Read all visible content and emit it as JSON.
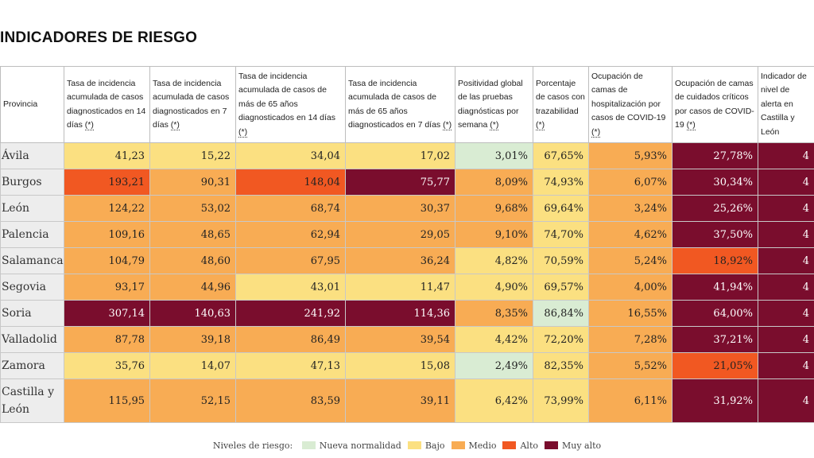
{
  "title": "INDICADORES DE RIESGO",
  "headers": [
    "Provincia",
    "Tasa de incidencia acumulada de casos diagnosticados en 14 días",
    "Tasa de incidencia acumulada de casos diagnosticados en 7 días",
    "Tasa de incidencia acumulada de casos de más de 65 años diagnosticados en 14 días",
    "Tasa de incidencia acumulada de casos de más de 65 años diagnosticados en 7 días",
    "Positividad global de las pruebas diagnósticas por semana",
    "Porcentaje de casos con trazabilidad",
    "Ocupación de camas de hospitalización por casos de COVID-19",
    "Ocupación de camas de cuidados críticos por casos de COVID-19",
    "Indicador de nivel de alerta en Castilla y León"
  ],
  "footnote_mark": "(*)",
  "rows": [
    {
      "prov": "Ávila",
      "cells": [
        {
          "v": "41,23",
          "c": "bj"
        },
        {
          "v": "15,22",
          "c": "bj"
        },
        {
          "v": "34,04",
          "c": "bj"
        },
        {
          "v": "17,02",
          "c": "bj"
        },
        {
          "v": "3,01%",
          "c": "nn"
        },
        {
          "v": "67,65%",
          "c": "bj"
        },
        {
          "v": "5,93%",
          "c": "md"
        },
        {
          "v": "27,78%",
          "c": "ma"
        },
        {
          "v": "4",
          "c": "ma"
        }
      ]
    },
    {
      "prov": "Burgos",
      "cells": [
        {
          "v": "193,21",
          "c": "al"
        },
        {
          "v": "90,31",
          "c": "md"
        },
        {
          "v": "148,04",
          "c": "al"
        },
        {
          "v": "75,77",
          "c": "ma"
        },
        {
          "v": "8,09%",
          "c": "md"
        },
        {
          "v": "74,93%",
          "c": "bj"
        },
        {
          "v": "6,07%",
          "c": "md"
        },
        {
          "v": "30,34%",
          "c": "ma"
        },
        {
          "v": "4",
          "c": "ma"
        }
      ]
    },
    {
      "prov": "León",
      "cells": [
        {
          "v": "124,22",
          "c": "md"
        },
        {
          "v": "53,02",
          "c": "md"
        },
        {
          "v": "68,74",
          "c": "md"
        },
        {
          "v": "30,37",
          "c": "md"
        },
        {
          "v": "9,68%",
          "c": "md"
        },
        {
          "v": "69,64%",
          "c": "bj"
        },
        {
          "v": "3,24%",
          "c": "md"
        },
        {
          "v": "25,26%",
          "c": "ma"
        },
        {
          "v": "4",
          "c": "ma"
        }
      ]
    },
    {
      "prov": "Palencia",
      "cells": [
        {
          "v": "109,16",
          "c": "md"
        },
        {
          "v": "48,65",
          "c": "md"
        },
        {
          "v": "62,94",
          "c": "md"
        },
        {
          "v": "29,05",
          "c": "md"
        },
        {
          "v": "9,10%",
          "c": "md"
        },
        {
          "v": "74,70%",
          "c": "bj"
        },
        {
          "v": "4,62%",
          "c": "md"
        },
        {
          "v": "37,50%",
          "c": "ma"
        },
        {
          "v": "4",
          "c": "ma"
        }
      ]
    },
    {
      "prov": "Salamanca",
      "cells": [
        {
          "v": "104,79",
          "c": "md"
        },
        {
          "v": "48,60",
          "c": "md"
        },
        {
          "v": "67,95",
          "c": "md"
        },
        {
          "v": "36,24",
          "c": "md"
        },
        {
          "v": "4,82%",
          "c": "bj"
        },
        {
          "v": "70,59%",
          "c": "bj"
        },
        {
          "v": "5,24%",
          "c": "md"
        },
        {
          "v": "18,92%",
          "c": "al"
        },
        {
          "v": "4",
          "c": "ma"
        }
      ]
    },
    {
      "prov": "Segovia",
      "cells": [
        {
          "v": "93,17",
          "c": "md"
        },
        {
          "v": "44,96",
          "c": "md"
        },
        {
          "v": "43,01",
          "c": "bj"
        },
        {
          "v": "11,47",
          "c": "bj"
        },
        {
          "v": "4,90%",
          "c": "bj"
        },
        {
          "v": "69,57%",
          "c": "bj"
        },
        {
          "v": "4,00%",
          "c": "md"
        },
        {
          "v": "41,94%",
          "c": "ma"
        },
        {
          "v": "4",
          "c": "ma"
        }
      ]
    },
    {
      "prov": "Soria",
      "cells": [
        {
          "v": "307,14",
          "c": "ma"
        },
        {
          "v": "140,63",
          "c": "ma"
        },
        {
          "v": "241,92",
          "c": "ma"
        },
        {
          "v": "114,36",
          "c": "ma"
        },
        {
          "v": "8,35%",
          "c": "md"
        },
        {
          "v": "86,84%",
          "c": "nn"
        },
        {
          "v": "16,55%",
          "c": "md"
        },
        {
          "v": "64,00%",
          "c": "ma"
        },
        {
          "v": "4",
          "c": "ma"
        }
      ]
    },
    {
      "prov": "Valladolid",
      "cells": [
        {
          "v": "87,78",
          "c": "md"
        },
        {
          "v": "39,18",
          "c": "md"
        },
        {
          "v": "86,49",
          "c": "md"
        },
        {
          "v": "39,54",
          "c": "md"
        },
        {
          "v": "4,42%",
          "c": "bj"
        },
        {
          "v": "72,20%",
          "c": "bj"
        },
        {
          "v": "7,28%",
          "c": "md"
        },
        {
          "v": "37,21%",
          "c": "ma"
        },
        {
          "v": "4",
          "c": "ma"
        }
      ]
    },
    {
      "prov": "Zamora",
      "cells": [
        {
          "v": "35,76",
          "c": "bj"
        },
        {
          "v": "14,07",
          "c": "bj"
        },
        {
          "v": "47,13",
          "c": "bj"
        },
        {
          "v": "15,08",
          "c": "bj"
        },
        {
          "v": "2,49%",
          "c": "nn"
        },
        {
          "v": "82,35%",
          "c": "bj"
        },
        {
          "v": "5,52%",
          "c": "md"
        },
        {
          "v": "21,05%",
          "c": "al"
        },
        {
          "v": "4",
          "c": "ma"
        }
      ]
    },
    {
      "prov": "Castilla y León",
      "cells": [
        {
          "v": "115,95",
          "c": "md"
        },
        {
          "v": "52,15",
          "c": "md"
        },
        {
          "v": "83,59",
          "c": "md"
        },
        {
          "v": "39,11",
          "c": "md"
        },
        {
          "v": "6,42%",
          "c": "bj"
        },
        {
          "v": "73,99%",
          "c": "bj"
        },
        {
          "v": "6,11%",
          "c": "md"
        },
        {
          "v": "31,92%",
          "c": "ma"
        },
        {
          "v": "4",
          "c": "ma"
        }
      ]
    }
  ],
  "legend": {
    "label": "Niveles de riesgo:",
    "items": [
      {
        "text": "Nueva normalidad",
        "color": "#d9ecd3"
      },
      {
        "text": "Bajo",
        "color": "#fbe081"
      },
      {
        "text": "Medio",
        "color": "#f8ac54"
      },
      {
        "text": "Alto",
        "color": "#f15822"
      },
      {
        "text": "Muy alto",
        "color": "#7a0d2d"
      }
    ]
  },
  "colors": {
    "nueva_normalidad": "#d9ecd3",
    "bajo": "#fbe081",
    "medio": "#f8ac54",
    "alto": "#f15822",
    "muy_alto": "#7a0d2d"
  }
}
